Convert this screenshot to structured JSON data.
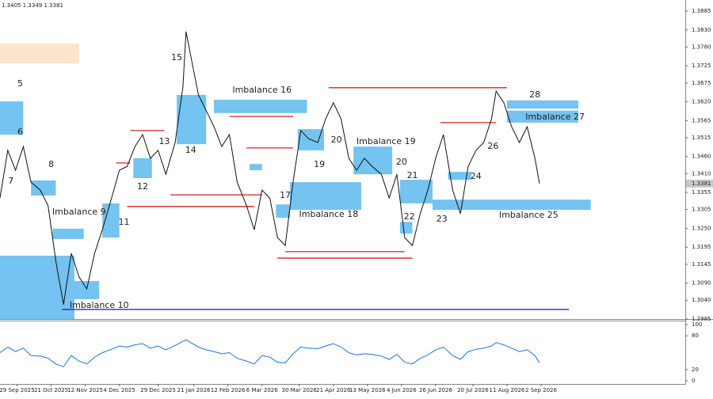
{
  "chart_data": [
    {
      "type": "line",
      "header": [
        1.3405,
        1.3349,
        1.3381
      ],
      "last_price": 1.3381,
      "xlim": [
        -11,
        431
      ],
      "ylim": [
        1.2985,
        1.3885
      ],
      "yticks": [
        1.3885,
        {
          "value": 1.383,
          "label": "1.3830"
        },
        {
          "value": 1.378,
          "label": "1.3780"
        },
        1.3725,
        1.3675,
        {
          "value": 1.362,
          "label": "1.3620"
        },
        1.3565,
        1.3515,
        {
          "value": 1.346,
          "label": "1.3460"
        },
        {
          "value": 1.341,
          "label": "1.3410"
        },
        1.3355,
        1.3305,
        {
          "value": 1.325,
          "label": "1.3250"
        },
        1.3195,
        1.3145,
        {
          "value": 1.309,
          "label": "1.3090"
        },
        {
          "value": 1.304,
          "label": "1.3040"
        },
        1.2985
      ],
      "series": [
        {
          "color": "#111111",
          "x": [
            -11,
            -6,
            -1,
            4,
            9,
            15,
            20,
            25,
            30,
            35,
            40,
            45,
            50,
            55,
            61,
            66,
            71,
            76,
            81,
            86,
            91,
            96,
            102,
            107,
            109,
            112,
            117,
            122,
            127,
            132,
            137,
            142,
            148,
            153,
            158,
            163,
            168,
            173,
            178,
            183,
            188,
            194,
            199,
            204,
            209,
            214,
            219,
            224,
            229,
            235,
            240,
            245,
            250,
            255,
            260,
            265,
            270,
            275,
            281,
            286,
            291,
            296,
            301,
            306,
            309,
            314,
            319,
            324,
            329,
            334,
            337
          ],
          "values": [
            1.3339,
            1.3478,
            1.342,
            1.3489,
            1.3385,
            1.3362,
            1.3316,
            1.3154,
            1.3027,
            1.3177,
            1.3108,
            1.3073,
            1.3177,
            1.3246,
            1.3339,
            1.342,
            1.3431,
            1.3489,
            1.3524,
            1.3455,
            1.3478,
            1.3408,
            1.3501,
            1.3663,
            1.3825,
            1.3755,
            1.364,
            1.3594,
            1.3547,
            1.3489,
            1.3524,
            1.3385,
            1.3316,
            1.3246,
            1.3362,
            1.3339,
            1.3223,
            1.32,
            1.3385,
            1.3536,
            1.3512,
            1.3501,
            1.357,
            1.3617,
            1.357,
            1.3455,
            1.342,
            1.3455,
            1.3431,
            1.3408,
            1.3339,
            1.3408,
            1.3223,
            1.32,
            1.3293,
            1.3362,
            1.3455,
            1.3524,
            1.3362,
            1.3293,
            1.3431,
            1.3478,
            1.3501,
            1.357,
            1.3651,
            1.3617,
            1.3547,
            1.3501,
            1.3547,
            1.3455,
            1.3381
          ]
        }
      ],
      "zones": [
        {
          "x": [
            -11,
            40
          ],
          "y": [
            1.3732,
            1.379
          ],
          "color": "#fbe3cc"
        },
        {
          "x": [
            -11,
            4
          ],
          "y": [
            1.3524,
            1.3621
          ],
          "color": "#74c3f0"
        },
        {
          "x": [
            -11,
            37
          ],
          "y": [
            1.2985,
            1.317
          ],
          "color": "#74c3f0"
        },
        {
          "x": [
            23,
            43
          ],
          "y": [
            1.3219,
            1.3249
          ],
          "color": "#74c3f0"
        },
        {
          "x": [
            34,
            53
          ],
          "y": [
            1.3043,
            1.3096
          ],
          "color": "#74c3f0"
        },
        {
          "x": [
            9,
            25
          ],
          "y": [
            1.3346,
            1.339
          ],
          "color": "#74c3f0"
        },
        {
          "x": [
            55,
            66
          ],
          "y": [
            1.3223,
            1.3323
          ],
          "color": "#74c3f0"
        },
        {
          "x": [
            75,
            87
          ],
          "y": [
            1.3397,
            1.3455
          ],
          "color": "#74c3f0"
        },
        {
          "x": [
            103,
            122
          ],
          "y": [
            1.3496,
            1.364
          ],
          "color": "#74c3f0"
        },
        {
          "x": [
            127,
            187
          ],
          "y": [
            1.3587,
            1.3626
          ],
          "color": "#74c3f0"
        },
        {
          "x": [
            150,
            158
          ],
          "y": [
            1.342,
            1.3438
          ],
          "color": "#74c3f0"
        },
        {
          "x": [
            167,
            176
          ],
          "y": [
            1.3281,
            1.332
          ],
          "color": "#74c3f0"
        },
        {
          "x": [
            176,
            222
          ],
          "y": [
            1.3304,
            1.3385
          ],
          "color": "#74c3f0"
        },
        {
          "x": [
            181,
            198
          ],
          "y": [
            1.3478,
            1.354
          ],
          "color": "#74c3f0"
        },
        {
          "x": [
            217,
            242
          ],
          "y": [
            1.3408,
            1.3489
          ],
          "color": "#74c3f0"
        },
        {
          "x": [
            247,
            268
          ],
          "y": [
            1.3323,
            1.3392
          ],
          "color": "#74c3f0"
        },
        {
          "x": [
            247,
            255
          ],
          "y": [
            1.3235,
            1.3269
          ],
          "color": "#74c3f0"
        },
        {
          "x": [
            268,
            370
          ],
          "y": [
            1.3304,
            1.3334
          ],
          "color": "#74c3f0"
        },
        {
          "x": [
            278,
            293
          ],
          "y": [
            1.3392,
            1.3415
          ],
          "color": "#74c3f0"
        },
        {
          "x": [
            316,
            362
          ],
          "y": [
            1.3559,
            1.3594
          ],
          "color": "#74c3f0"
        },
        {
          "x": [
            316,
            362
          ],
          "y": [
            1.36,
            1.3624
          ],
          "color": "#74c3f0"
        }
      ],
      "levels": [
        {
          "x": [
            71,
            153
          ],
          "y": 1.3314,
          "color": "#d62020"
        },
        {
          "x": [
            99,
            158
          ],
          "y": 1.3348,
          "color": "#d62020"
        },
        {
          "x": [
            137,
            178
          ],
          "y": 1.3577,
          "color": "#d62020"
        },
        {
          "x": [
            148,
            178
          ],
          "y": 1.3485,
          "color": "#d62020"
        },
        {
          "x": [
            173,
            250
          ],
          "y": 1.3182,
          "color": "#d62020"
        },
        {
          "x": [
            168,
            255
          ],
          "y": 1.3163,
          "color": "#d62020"
        },
        {
          "x": [
            201,
            316
          ],
          "y": 1.3661,
          "color": "#d62020"
        },
        {
          "x": [
            273,
            309
          ],
          "y": 1.3559,
          "color": "#d62020"
        },
        {
          "x": [
            73,
            95
          ],
          "y": 1.3536,
          "color": "#d62020"
        },
        {
          "x": [
            64,
            73
          ],
          "y": 1.3441,
          "color": "#d62020"
        },
        {
          "x": [
            29,
            356
          ],
          "y": 1.3013,
          "color": "#1a1aa8"
        }
      ],
      "annotations": [
        {
          "text": "5",
          "x": 2,
          "y": 1.3672
        },
        {
          "text": "6",
          "x": 2,
          "y": 1.3531
        },
        {
          "text": "7",
          "x": -4,
          "y": 1.3388
        },
        {
          "text": "8",
          "x": 22,
          "y": 1.3436
        },
        {
          "text": "Imbalance 9",
          "x": 40,
          "y": 1.3297
        },
        {
          "text": "Imbalance 10",
          "x": 53,
          "y": 1.3024
        },
        {
          "text": "11",
          "x": 69,
          "y": 1.3267
        },
        {
          "text": "12",
          "x": 81,
          "y": 1.3371
        },
        {
          "text": "13",
          "x": 95,
          "y": 1.3503
        },
        {
          "text": "14",
          "x": 112,
          "y": 1.3478
        },
        {
          "text": "15",
          "x": 103,
          "y": 1.3748
        },
        {
          "text": "Imbalance 16",
          "x": 158,
          "y": 1.3654
        },
        {
          "text": "17",
          "x": 173,
          "y": 1.3346
        },
        {
          "text": "Imbalance 18",
          "x": 201,
          "y": 1.329
        },
        {
          "text": "19",
          "x": 195,
          "y": 1.3436
        },
        {
          "text": "20",
          "x": 206,
          "y": 1.3508
        },
        {
          "text": "Imbalance 19",
          "x": 238,
          "y": 1.3503
        },
        {
          "text": "20",
          "x": 248,
          "y": 1.3443
        },
        {
          "text": "21",
          "x": 255,
          "y": 1.3404
        },
        {
          "text": "22",
          "x": 253,
          "y": 1.3283
        },
        {
          "text": "23",
          "x": 274,
          "y": 1.3276
        },
        {
          "text": "24",
          "x": 296,
          "y": 1.3401
        },
        {
          "text": "Imbalance 25",
          "x": 330,
          "y": 1.3288
        },
        {
          "text": "26",
          "x": 307,
          "y": 1.3489
        },
        {
          "text": "Imbalance 27",
          "x": 347,
          "y": 1.3575
        },
        {
          "text": "28",
          "x": 334,
          "y": 1.364
        }
      ]
    },
    {
      "type": "line",
      "xlim": [
        -11,
        431
      ],
      "ylim": [
        0,
        100
      ],
      "yticks": [
        0,
        20,
        80,
        100
      ],
      "xticks": [
        {
          "value": 0,
          "label": "29 Sep 2025"
        },
        {
          "value": 22,
          "label": "21 Oct 2025"
        },
        {
          "value": 44,
          "label": "12 Nov 2025"
        },
        {
          "value": 66,
          "label": "4 Dec 2025"
        },
        {
          "value": 91,
          "label": "29 Dec 2025"
        },
        {
          "value": 114,
          "label": "21 Jan 2026"
        },
        {
          "value": 136,
          "label": "12 Feb 2026"
        },
        {
          "value": 158,
          "label": "6 Mar 2026"
        },
        {
          "value": 182,
          "label": "30 Mar 2026"
        },
        {
          "value": 204,
          "label": "21 Apr 2026"
        },
        {
          "value": 226,
          "label": "13 May 2026"
        },
        {
          "value": 248,
          "label": "4 Jun 2026"
        },
        {
          "value": 270,
          "label": "26 Jun 2026"
        },
        {
          "value": 294,
          "label": "20 Jul 2026"
        },
        {
          "value": 316,
          "label": "11 Aug 2026"
        },
        {
          "value": 338,
          "label": "2 Sep 2026"
        }
      ],
      "series": [
        {
          "color": "#1e73d8",
          "x": [
            -11,
            -6,
            -1,
            4,
            9,
            15,
            20,
            25,
            30,
            35,
            40,
            45,
            50,
            55,
            61,
            66,
            71,
            76,
            81,
            86,
            91,
            96,
            102,
            107,
            109,
            112,
            117,
            122,
            127,
            132,
            137,
            142,
            148,
            153,
            158,
            163,
            168,
            173,
            178,
            183,
            188,
            194,
            199,
            204,
            209,
            214,
            219,
            224,
            229,
            235,
            240,
            245,
            250,
            255,
            260,
            265,
            270,
            275,
            281,
            286,
            291,
            296,
            301,
            306,
            309,
            314,
            319,
            324,
            329,
            334,
            337
          ],
          "values": [
            50,
            60,
            52,
            58,
            45,
            44,
            40,
            30,
            25,
            45,
            35,
            30,
            42,
            50,
            56,
            62,
            60,
            64,
            66,
            58,
            62,
            55,
            63,
            70,
            73,
            68,
            60,
            55,
            52,
            48,
            50,
            40,
            35,
            30,
            45,
            42,
            33,
            32,
            48,
            60,
            58,
            57,
            62,
            66,
            60,
            50,
            46,
            48,
            47,
            44,
            38,
            47,
            33,
            30,
            40,
            46,
            55,
            60,
            45,
            38,
            52,
            56,
            58,
            62,
            68,
            64,
            58,
            52,
            55,
            45,
            32
          ]
        }
      ]
    }
  ]
}
